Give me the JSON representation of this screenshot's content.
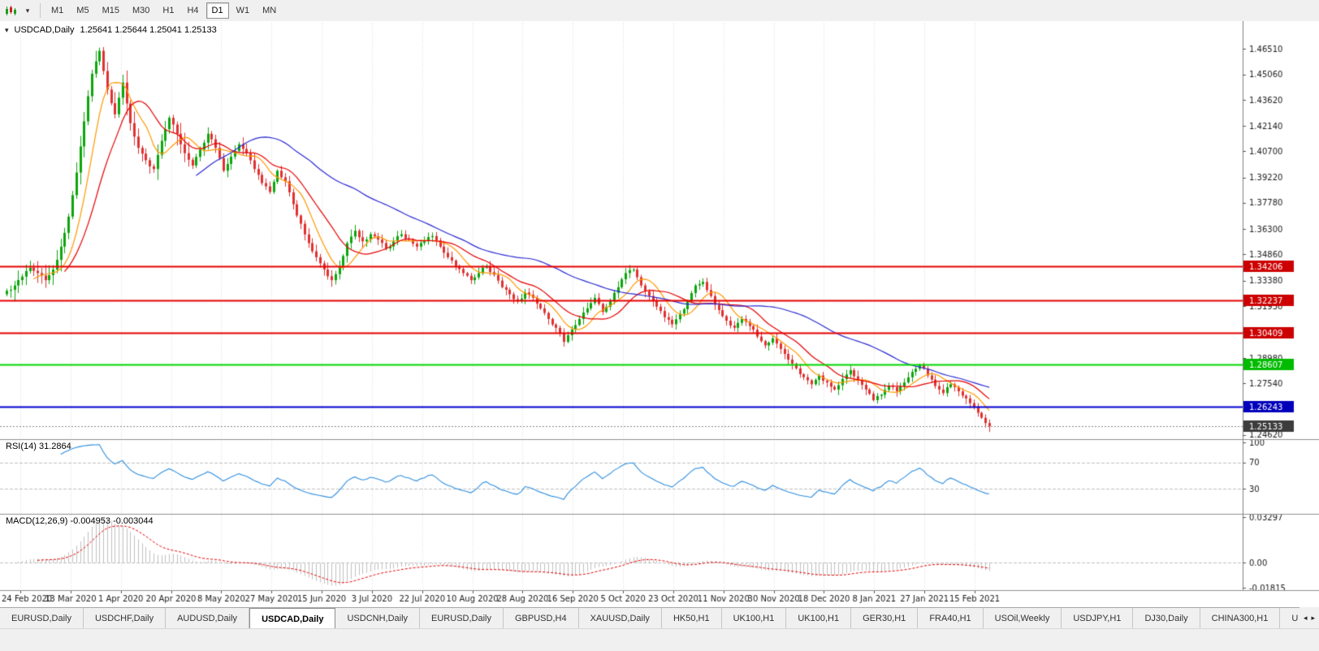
{
  "toolbar": {
    "icons": [
      {
        "name": "candlestick-chart-icon"
      },
      {
        "name": "dropdown-arrow-icon",
        "glyph": "▾"
      }
    ],
    "timeframes": [
      {
        "label": "M1",
        "active": false
      },
      {
        "label": "M5",
        "active": false
      },
      {
        "label": "M15",
        "active": false
      },
      {
        "label": "M30",
        "active": false
      },
      {
        "label": "H1",
        "active": false
      },
      {
        "label": "H4",
        "active": false
      },
      {
        "label": "D1",
        "active": true
      },
      {
        "label": "W1",
        "active": false
      },
      {
        "label": "MN",
        "active": false
      }
    ]
  },
  "chart": {
    "icon_glyph": "▾",
    "symbol": "USDCAD,Daily",
    "ohlc": "1.25641 1.25644 1.25041 1.25133",
    "rsi_label": "RSI(14) 31.2864",
    "macd_label": "MACD(12,26,9) -0.004953 -0.003044"
  },
  "chart_data": {
    "type": "candlestick",
    "symbol": "USDCAD",
    "timeframe": "Daily",
    "ohlc_line": {
      "open": "1.25641",
      "high": "1.25644",
      "low": "1.25041",
      "close": "1.25133"
    },
    "price_max": 1.479,
    "price_min": 1.2448,
    "x_labels": [
      "24 Feb 2020",
      "13 Mar 2020",
      "1 Apr 2020",
      "20 Apr 2020",
      "8 May 2020",
      "27 May 2020",
      "15 Jun 2020",
      "3 Jul 2020",
      "22 Jul 2020",
      "10 Aug 2020",
      "28 Aug 2020",
      "16 Sep 2020",
      "5 Oct 2020",
      "23 Oct 2020",
      "11 Nov 2020",
      "30 Nov 2020",
      "18 Dec 2020",
      "8 Jan 2021",
      "27 Jan 2021",
      "15 Feb 2021"
    ],
    "y_axis_labels": [
      "1.46510",
      "1.45060",
      "1.43620",
      "1.42140",
      "1.40700",
      "1.39220",
      "1.37780",
      "1.36300",
      "1.34860",
      "1.33380",
      "1.31930",
      "1.30450",
      "1.28980",
      "1.27540",
      "1.26060",
      "1.24620"
    ],
    "closes": [
      1.328,
      1.331,
      1.336,
      1.341,
      1.338,
      1.334,
      1.34,
      1.353,
      1.37,
      1.395,
      1.424,
      1.451,
      1.464,
      1.442,
      1.428,
      1.446,
      1.423,
      1.409,
      1.402,
      1.397,
      1.413,
      1.426,
      1.417,
      1.406,
      1.399,
      1.408,
      1.417,
      1.409,
      1.396,
      1.404,
      1.411,
      1.406,
      1.397,
      1.389,
      1.384,
      1.396,
      1.39,
      1.377,
      1.366,
      1.355,
      1.347,
      1.34,
      1.334,
      1.342,
      1.355,
      1.362,
      1.356,
      1.36,
      1.357,
      1.352,
      1.356,
      1.36,
      1.357,
      1.353,
      1.356,
      1.359,
      1.353,
      1.347,
      1.342,
      1.338,
      1.334,
      1.338,
      1.342,
      1.337,
      1.33,
      1.326,
      1.322,
      1.327,
      1.324,
      1.318,
      1.312,
      1.307,
      1.299,
      1.306,
      1.312,
      1.318,
      1.324,
      1.316,
      1.322,
      1.33,
      1.338,
      1.34,
      1.331,
      1.325,
      1.319,
      1.313,
      1.309,
      1.315,
      1.322,
      1.331,
      1.333,
      1.325,
      1.317,
      1.311,
      1.307,
      1.312,
      1.308,
      1.302,
      1.297,
      1.301,
      1.295,
      1.289,
      1.284,
      1.279,
      1.275,
      1.28,
      1.276,
      1.272,
      1.278,
      1.283,
      1.277,
      1.272,
      1.266,
      1.269,
      1.274,
      1.271,
      1.276,
      1.282,
      1.286,
      1.28,
      1.274,
      1.27,
      1.275,
      1.271,
      1.267,
      1.262,
      1.256,
      1.25133
    ],
    "up_color": "#0CA50C",
    "down_color": "#E03131",
    "moving_averages": [
      {
        "name": "fast-ma",
        "period": 8,
        "color": "#FF9900"
      },
      {
        "name": "medium-ma",
        "period": 16,
        "color": "#E60000"
      },
      {
        "name": "slow-ma",
        "period": 50,
        "color": "#2A2AD4"
      }
    ],
    "levels": [
      {
        "value": 1.34206,
        "label": "1.34206",
        "color": "#E60000",
        "label_bg": "#CC0000"
      },
      {
        "value": 1.32237,
        "label": "1.32237",
        "color": "#E60000",
        "label_bg": "#CC0000"
      },
      {
        "value": 1.30409,
        "label": "1.30409",
        "color": "#E60000",
        "label_bg": "#CC0000"
      },
      {
        "value": 1.28607,
        "label": "1.28607",
        "color": "#00D500",
        "label_bg": "#00BB00"
      },
      {
        "value": 1.26243,
        "label": "1.26243",
        "color": "#0000D0",
        "label_bg": "#0000BB"
      }
    ],
    "current_price": {
      "value": 1.25133,
      "label": "1.25133",
      "label_bg": "#3C3C3C"
    },
    "rsi": {
      "period": 14,
      "value": 31.2864,
      "color": "#2F8FE0",
      "levels": [
        {
          "value": 100,
          "label": "100"
        },
        {
          "value": 70,
          "label": "70"
        },
        {
          "value": 30,
          "label": "30"
        }
      ]
    },
    "macd": {
      "fast": 12,
      "slow": 26,
      "signal": 9,
      "macd_value": -0.004953,
      "signal_value": -0.003044,
      "histogram_color": "#C0C0C0",
      "signal_color": "#E60000",
      "y_ticks": [
        {
          "value": 0.03297,
          "label": "0.03297"
        },
        {
          "value": 0,
          "label": "0.00"
        },
        {
          "value": -0.01815,
          "label": "-0.01815"
        }
      ]
    }
  },
  "tabs": {
    "items": [
      {
        "label": "EURUSD,Daily",
        "active": false
      },
      {
        "label": "USDCHF,Daily",
        "active": false
      },
      {
        "label": "AUDUSD,Daily",
        "active": false
      },
      {
        "label": "USDCAD,Daily",
        "active": true
      },
      {
        "label": "USDCNH,Daily",
        "active": false
      },
      {
        "label": "EURUSD,Daily",
        "active": false
      },
      {
        "label": "GBPUSD,H4",
        "active": false
      },
      {
        "label": "XAUUSD,Daily",
        "active": false
      },
      {
        "label": "HK50,H1",
        "active": false
      },
      {
        "label": "UK100,H1",
        "active": false
      },
      {
        "label": "UK100,H1",
        "active": false
      },
      {
        "label": "GER30,H1",
        "active": false
      },
      {
        "label": "FRA40,H1",
        "active": false
      },
      {
        "label": "USOil,Weekly",
        "active": false
      },
      {
        "label": "USDJPY,H1",
        "active": false
      },
      {
        "label": "DJ30,Daily",
        "active": false
      },
      {
        "label": "CHINA300,H1",
        "active": false
      },
      {
        "label": "U",
        "active": false
      }
    ],
    "scroll": {
      "left": "◂",
      "right": "▸"
    }
  }
}
